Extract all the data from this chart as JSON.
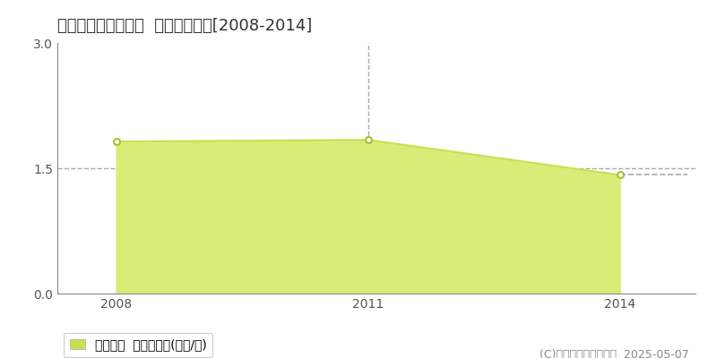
{
  "title": "喜多郡内子町中田渡  土地価格推移[2008-2014]",
  "years": [
    2008,
    2011,
    2014
  ],
  "values": [
    1.82,
    1.84,
    1.42
  ],
  "line_color": "#c8e050",
  "fill_color": "#d8ed78",
  "marker_color": "#ffffff",
  "marker_edge_color": "#a8c030",
  "ylim": [
    0,
    3
  ],
  "yticks": [
    0,
    1.5,
    3
  ],
  "xticks": [
    2008,
    2011,
    2014
  ],
  "vline_x": 2011,
  "vline_color": "#aaaaaa",
  "hline_y": 1.5,
  "hline_color": "#aaaaaa",
  "legend_label": "土地価格  平均坪単価(万円/坪)",
  "copyright_text": "(C)土地価格ドットコム  2025-05-07",
  "background_color": "#ffffff",
  "title_fontsize": 13,
  "axis_fontsize": 10,
  "legend_fontsize": 10,
  "copyright_fontsize": 9,
  "last_point_dash_color": "#aaaaaa",
  "xlim_left": 2007.3,
  "xlim_right": 2014.9
}
